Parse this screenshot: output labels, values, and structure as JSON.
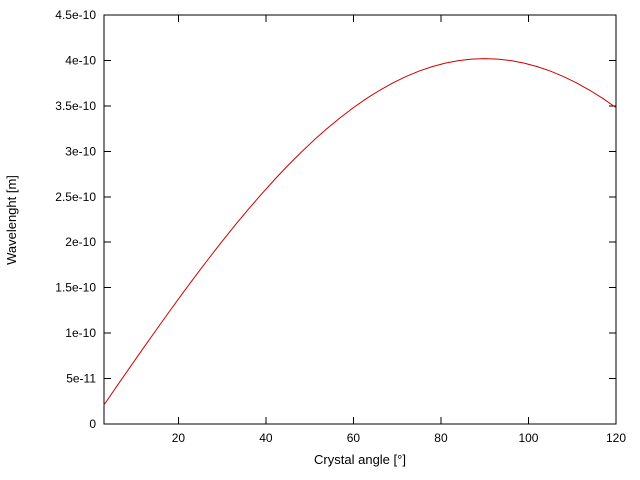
{
  "chart_data": {
    "type": "line",
    "title": "",
    "xlabel": "Crystal angle [°]",
    "ylabel": "Wavelenght [m]",
    "xlim": [
      3,
      120
    ],
    "ylim": [
      0,
      4.5e-10
    ],
    "grid": false,
    "legend": "none",
    "line_color": "#cc0000",
    "border_color": "#000000",
    "x_tick_values": [
      20,
      40,
      60,
      80,
      100,
      120
    ],
    "x_tick_labels": [
      "20",
      "40",
      "60",
      "80",
      "100",
      "120"
    ],
    "y_tick_values": [
      0,
      5e-11,
      1e-10,
      1.5e-10,
      2e-10,
      2.5e-10,
      3e-10,
      3.5e-10,
      4e-10,
      4.5e-10
    ],
    "y_tick_labels": [
      "0",
      "5e-11",
      "1e-10",
      "1.5e-10",
      "2e-10",
      "2.5e-10",
      "3e-10",
      "3.5e-10",
      "4e-10",
      "4.5e-10"
    ],
    "series": [
      {
        "name": "wavelength",
        "color": "#cc0000",
        "x": [
          3,
          6,
          9,
          12,
          15,
          18,
          21,
          24,
          27,
          30,
          33,
          36,
          39,
          42,
          45,
          48,
          51,
          54,
          57,
          60,
          63,
          66,
          69,
          72,
          75,
          78,
          81,
          84,
          87,
          90,
          93,
          96,
          99,
          102,
          105,
          108,
          111,
          114,
          117,
          120
        ],
        "y": [
          2.104e-11,
          4.202e-11,
          6.289e-11,
          8.358e-11,
          1.04e-10,
          1.242e-10,
          1.441e-10,
          1.635e-10,
          1.825e-10,
          2.01e-10,
          2.19e-10,
          2.363e-10,
          2.53e-10,
          2.69e-10,
          2.843e-10,
          2.987e-10,
          3.124e-10,
          3.252e-10,
          3.371e-10,
          3.481e-10,
          3.582e-10,
          3.672e-10,
          3.753e-10,
          3.823e-10,
          3.883e-10,
          3.932e-10,
          3.97e-10,
          3.998e-10,
          4.014e-10,
          4.02e-10,
          4.014e-10,
          3.998e-10,
          3.97e-10,
          3.932e-10,
          3.883e-10,
          3.823e-10,
          3.753e-10,
          3.672e-10,
          3.582e-10,
          3.481e-10
        ]
      }
    ]
  }
}
